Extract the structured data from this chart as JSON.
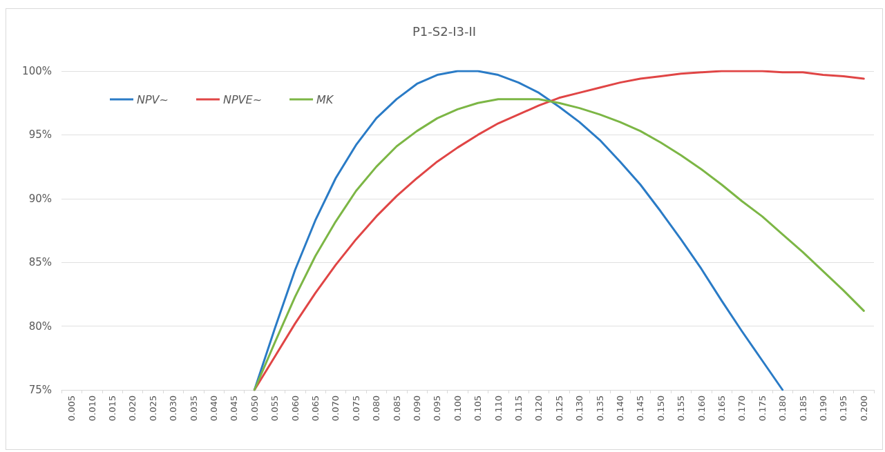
{
  "chart_data": {
    "type": "line",
    "title": "P1-S2-I3-II",
    "categories": [
      "0.005",
      "0.010",
      "0.015",
      "0.020",
      "0.025",
      "0.030",
      "0.035",
      "0.040",
      "0.045",
      "0.050",
      "0.055",
      "0.060",
      "0.065",
      "0.070",
      "0.075",
      "0.080",
      "0.085",
      "0.090",
      "0.095",
      "0.100",
      "0.105",
      "0.110",
      "0.115",
      "0.120",
      "0.125",
      "0.130",
      "0.135",
      "0.140",
      "0.145",
      "0.150",
      "0.155",
      "0.160",
      "0.165",
      "0.170",
      "0.175",
      "0.180",
      "0.185",
      "0.190",
      "0.195",
      "0.200"
    ],
    "series": [
      {
        "name": "NPV~",
        "color": "#2a7bc6",
        "values": [
          null,
          null,
          null,
          null,
          null,
          null,
          null,
          null,
          null,
          75,
          79.8,
          84.4,
          88.3,
          91.6,
          94.2,
          96.3,
          97.8,
          99.0,
          99.7,
          100,
          100,
          99.7,
          99.1,
          98.3,
          97.2,
          96.0,
          94.6,
          92.9,
          91.1,
          89.0,
          86.8,
          84.5,
          82.0,
          79.6,
          77.3,
          75,
          null,
          null,
          null,
          null
        ]
      },
      {
        "name": "NPVE~",
        "color": "#e04545",
        "values": [
          null,
          null,
          null,
          null,
          null,
          null,
          null,
          null,
          null,
          75,
          77.6,
          80.2,
          82.6,
          84.8,
          86.8,
          88.6,
          90.2,
          91.6,
          92.9,
          94.0,
          95.0,
          95.9,
          96.6,
          97.3,
          97.9,
          98.3,
          98.7,
          99.1,
          99.4,
          99.6,
          99.8,
          99.9,
          100,
          100,
          100,
          99.9,
          99.9,
          99.7,
          99.6,
          99.4
        ]
      },
      {
        "name": "MK",
        "color": "#7cb645",
        "values": [
          null,
          null,
          null,
          null,
          null,
          null,
          null,
          null,
          null,
          75,
          78.7,
          82.3,
          85.5,
          88.2,
          90.6,
          92.5,
          94.1,
          95.3,
          96.3,
          97.0,
          97.5,
          97.8,
          97.8,
          97.8,
          97.5,
          97.1,
          96.6,
          96.0,
          95.3,
          94.4,
          93.4,
          92.3,
          91.1,
          89.8,
          88.6,
          87.2,
          85.8,
          84.3,
          82.8,
          81.2
        ]
      }
    ],
    "ylim": [
      75,
      100
    ],
    "yticks": [
      {
        "value": 75,
        "label": "75%"
      },
      {
        "value": 80,
        "label": "80%"
      },
      {
        "value": 85,
        "label": "85%"
      },
      {
        "value": 90,
        "label": "90%"
      },
      {
        "value": 95,
        "label": "95%"
      },
      {
        "value": 100,
        "label": "100%"
      }
    ],
    "grid": "y",
    "legend": "top left",
    "marker": "none",
    "line_style": "solid"
  }
}
